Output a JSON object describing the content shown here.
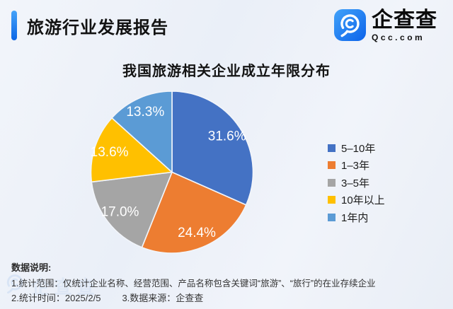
{
  "header": {
    "title": "旅游行业发展报告"
  },
  "logo": {
    "name": "企查查",
    "domain": "Qcc.com",
    "icon": "qcc-spiral-magnifier-icon"
  },
  "chart_data": {
    "type": "pie",
    "title": "我国旅游相关企业成立年限分布",
    "labels": [
      "5–10年",
      "1–3年",
      "3–5年",
      "10年以上",
      "1年内"
    ],
    "values": [
      31.6,
      24.4,
      17.0,
      13.6,
      13.3
    ],
    "value_labels": [
      "31.6%",
      "24.4%",
      "17.0%",
      "13.6%",
      "13.3%"
    ],
    "colors": [
      "#4472c4",
      "#ed7d31",
      "#a5a5a5",
      "#ffc000",
      "#5b9bd5"
    ],
    "legend_position": "right",
    "start_angle_deg": 0,
    "direction": "clockwise",
    "label_color": "#ffffff",
    "slice_gap_color": "#f2f5fa"
  },
  "footer": {
    "heading": "数据说明:",
    "line1": "1.统计范围：仅统计企业名称、经营范围、产品名称包含关键词“旅游”、“旅行”的在业存续企业",
    "line2_left": "2.统计时间：2025/2/5",
    "line2_right": "3.数据来源：企查查"
  },
  "watermark": {
    "icon": "qcc-ring-watermark-icon",
    "text": "企查查"
  }
}
